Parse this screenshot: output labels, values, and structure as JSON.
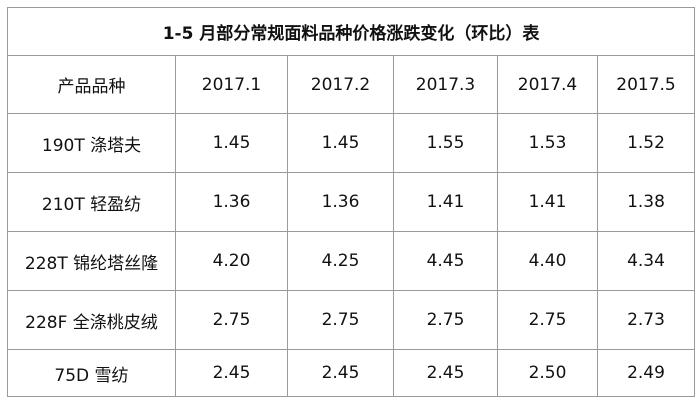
{
  "table": {
    "title": "1-5 月部分常规面料品种价格涨跌变化（环比）表",
    "header": [
      "产品品种",
      "2017.1",
      "2017.2",
      "2017.3",
      "2017.4",
      "2017.5"
    ],
    "rows": [
      [
        "190T 涤塔夫",
        "1.45",
        "1.45",
        "1.55",
        "1.53",
        "1.52"
      ],
      [
        "210T 轻盈纺",
        "1.36",
        "1.36",
        "1.41",
        "1.41",
        "1.38"
      ],
      [
        "228T 锦纶塔丝隆",
        "4.20",
        "4.25",
        "4.45",
        "4.40",
        "4.34"
      ],
      [
        "228F 全涤桃皮绒",
        "2.75",
        "2.75",
        "2.75",
        "2.75",
        "2.73"
      ],
      [
        "75D 雪纺",
        "2.45",
        "2.45",
        "2.45",
        "2.50",
        "2.49"
      ]
    ]
  }
}
